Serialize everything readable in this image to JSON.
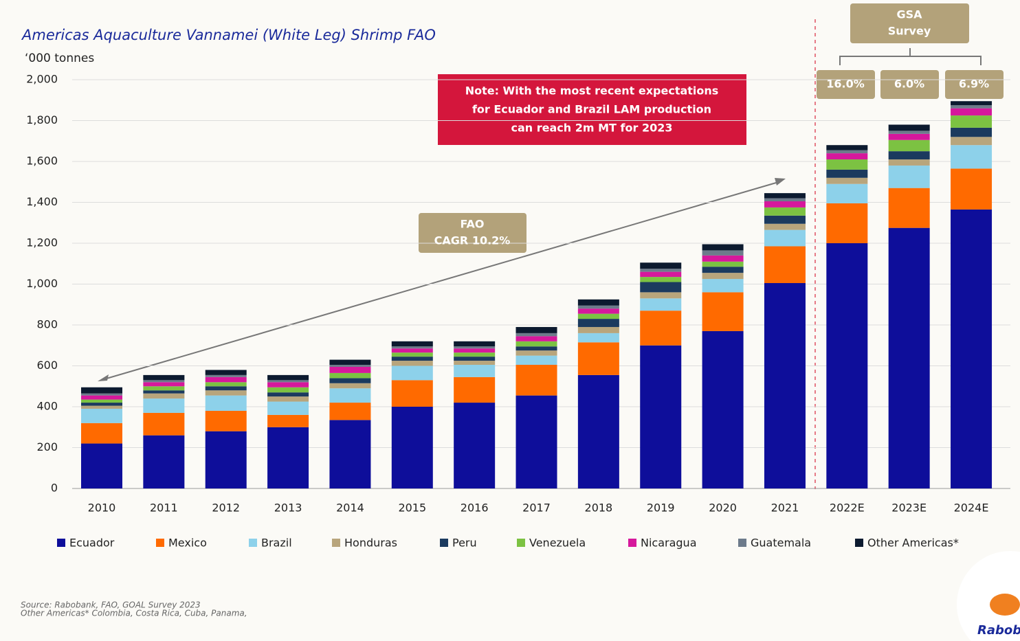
{
  "chart_data": {
    "type": "stacked_bar",
    "title": "Americas Aquaculture Vannamei (White Leg) Shrimp FAO",
    "y_axis_label": "‘000 tonnes",
    "categories": [
      "2010",
      "2011",
      "2012",
      "2013",
      "2014",
      "2015",
      "2016",
      "2017",
      "2018",
      "2019",
      "2020",
      "2021",
      "2022E",
      "2023E",
      "2024E"
    ],
    "series": [
      {
        "name": "Ecuador",
        "color": "#0e0e9a",
        "values": [
          220,
          260,
          280,
          300,
          335,
          400,
          420,
          455,
          555,
          700,
          770,
          1005,
          1200,
          1275,
          1365
        ]
      },
      {
        "name": "Mexico",
        "color": "#ff6a00",
        "values": [
          100,
          110,
          100,
          60,
          85,
          130,
          125,
          150,
          160,
          170,
          190,
          180,
          195,
          195,
          200
        ]
      },
      {
        "name": "Brazil",
        "color": "#8dd1ea",
        "values": [
          70,
          70,
          75,
          65,
          70,
          70,
          60,
          45,
          45,
          60,
          65,
          80,
          95,
          110,
          115
        ]
      },
      {
        "name": "Honduras",
        "color": "#b8a57c",
        "values": [
          15,
          25,
          25,
          25,
          25,
          25,
          20,
          25,
          30,
          30,
          30,
          30,
          30,
          30,
          40
        ]
      },
      {
        "name": "Peru",
        "color": "#1b3a5e",
        "values": [
          15,
          15,
          20,
          20,
          25,
          20,
          20,
          20,
          40,
          50,
          30,
          40,
          40,
          40,
          45
        ]
      },
      {
        "name": "Venezuela",
        "color": "#7cc242",
        "values": [
          15,
          20,
          20,
          25,
          25,
          20,
          20,
          25,
          25,
          25,
          25,
          40,
          50,
          55,
          60
        ]
      },
      {
        "name": "Nicaragua",
        "color": "#d6189c",
        "values": [
          20,
          20,
          25,
          25,
          30,
          20,
          20,
          25,
          25,
          25,
          30,
          30,
          30,
          30,
          35
        ]
      },
      {
        "name": "Guatemala",
        "color": "#6d7b8b",
        "values": [
          10,
          10,
          10,
          10,
          10,
          10,
          10,
          15,
          15,
          15,
          25,
          15,
          15,
          15,
          15
        ]
      },
      {
        "name": "Other Americas*",
        "color": "#0c1a2f",
        "values": [
          30,
          25,
          25,
          25,
          25,
          25,
          25,
          30,
          30,
          30,
          30,
          25,
          25,
          30,
          20
        ]
      }
    ],
    "ylim": [
      0,
      2000
    ],
    "yticks": [
      0,
      200,
      400,
      600,
      800,
      {
        "value": 1000,
        "label": "1,000"
      },
      {
        "value": 1200,
        "label": "1,200"
      },
      {
        "value": 1400,
        "label": "1,400"
      },
      {
        "value": 1600,
        "label": "1,600"
      },
      {
        "value": 1800,
        "label": "1,800"
      },
      {
        "value": 2000,
        "label": "2,000"
      }
    ],
    "grid": true,
    "legend": "bottom",
    "note": [
      "Note: With the most recent expectations",
      "for Ecuador and Brazil LAM production",
      "can reach 2m MT for 2023"
    ],
    "fao_label": [
      "FAO",
      "CAGR 10.2%"
    ],
    "gsa_label": [
      "GSA",
      "Survey"
    ],
    "gsa_growth": [
      "16.0%",
      "6.0%",
      "6.9%"
    ],
    "source": [
      "Source: Rabobank, FAO, GOAL Survey 2023",
      "Other Americas* Colombia, Costa Rica, Cuba, Panama,"
    ],
    "logo": "Raboba"
  }
}
